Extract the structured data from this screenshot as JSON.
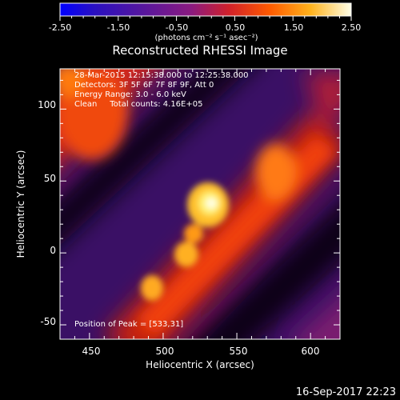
{
  "colorbar": {
    "tick_labels": [
      "-2.50",
      "-1.50",
      "-0.50",
      "0.50",
      "1.50",
      "2.50"
    ],
    "unit_label": "(photons cm⁻² s⁻¹ asec⁻²)",
    "range": [
      -2.5,
      2.5
    ]
  },
  "chart_data": {
    "type": "heatmap",
    "title": "Reconstructed RHESSI Image",
    "xlabel": "Heliocentric X (arcsec)",
    "ylabel": "Heliocentric Y (arcsec)",
    "xlim": [
      430,
      620
    ],
    "ylim": [
      -60,
      128
    ],
    "xticks": [
      450,
      500,
      550,
      600
    ],
    "yticks": [
      -50,
      0,
      50,
      100
    ],
    "annotations": [
      "28-Mar-2015 12:15:38.000 to 12:25:38.000",
      "Detectors: 3F 5F 6F 7F 8F 9F, Att 0",
      "Energy Range: 3.0 - 6.0 keV",
      "Clean     Total counts: 4.16E+05"
    ],
    "peak_label": "Position of Peak = [533,31]",
    "peak": [
      533,
      31
    ],
    "colormap": "hot (black-purple-red-orange-yellow-white)"
  },
  "footer": {
    "timestamp": "16-Sep-2017 22:23"
  },
  "colors": {
    "background": "#000000",
    "foreground": "#ffffff"
  }
}
